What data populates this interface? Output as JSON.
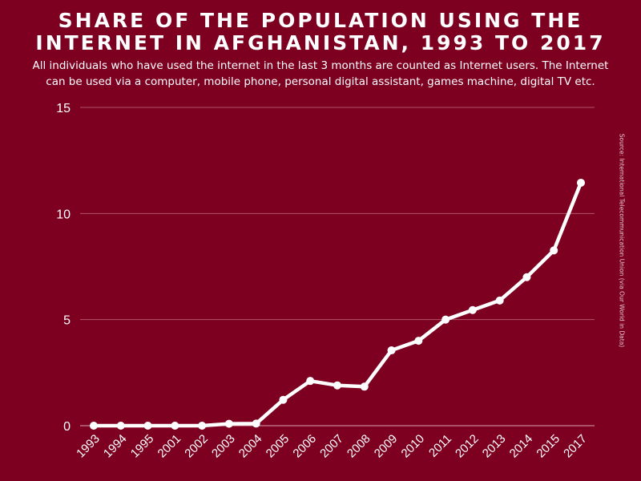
{
  "title_line1": "SHARE OF THE POPULATION USING THE",
  "title_line2": "INTERNET IN AFGHANISTAN, 1993 TO 2017",
  "subtitle_line1": "All individuals who have used the internet in the last 3 months are counted as Internet users. The Internet",
  "subtitle_line2": "can be used via a computer, mobile phone, personal digital assistant, games machine, digital TV etc.",
  "source": "Source: International Telecommunication Union (via Our World in Data)",
  "colors": {
    "background": "#7d0020",
    "line": "#ffffff",
    "grid": "#b0546a",
    "text": "#ffffff"
  },
  "chart_data": {
    "type": "line",
    "x": [
      "1993",
      "1994",
      "1995",
      "2001",
      "2002",
      "2003",
      "2004",
      "2005",
      "2006",
      "2007",
      "2008",
      "2009",
      "2010",
      "2011",
      "2012",
      "2013",
      "2014",
      "2015",
      "2017"
    ],
    "values": [
      0,
      0,
      0,
      0,
      0,
      0.09,
      0.1,
      1.22,
      2.11,
      1.9,
      1.84,
      3.55,
      4.0,
      5.0,
      5.45,
      5.9,
      7.0,
      8.26,
      11.45
    ],
    "yticks": [
      0,
      5,
      10,
      15
    ],
    "ylim": [
      0,
      15
    ],
    "grid": true,
    "legend": "none"
  }
}
